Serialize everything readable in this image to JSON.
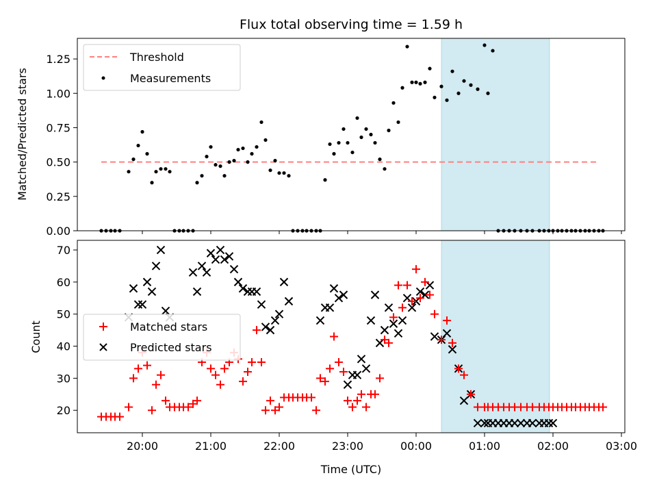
{
  "chart_data": [
    {
      "type": "scatter",
      "title": "Flux total observing time = 1.59 h",
      "xlabel": "",
      "ylabel": "Matched/Predicted stars",
      "ylim": [
        0,
        1.4
      ],
      "yticks": [
        "0.00",
        "0.25",
        "0.50",
        "0.75",
        "1.00",
        "1.25"
      ],
      "xlim_hours": [
        -4.95,
        3.05
      ],
      "highlight_span_hours": [
        0.37,
        1.95
      ],
      "legend_position": "upper-left",
      "threshold": {
        "name": "Threshold",
        "value": 0.5,
        "x_range_hours": [
          -4.6,
          2.65
        ],
        "color": "#ff7f7f"
      },
      "measurements": {
        "name": "Measurements",
        "color": "#000000",
        "x_hours": [
          -4.6,
          -4.53,
          -4.46,
          -4.4,
          -4.33,
          -4.2,
          -4.13,
          -4.06,
          -4.0,
          -3.93,
          -3.86,
          -3.8,
          -3.73,
          -3.66,
          -3.6,
          -3.53,
          -3.46,
          -3.4,
          -3.33,
          -3.26,
          -3.2,
          -3.13,
          -3.06,
          -3.0,
          -2.93,
          -2.86,
          -2.8,
          -2.73,
          -2.66,
          -2.6,
          -2.53,
          -2.46,
          -2.4,
          -2.33,
          -2.26,
          -2.2,
          -2.13,
          -2.06,
          -2.0,
          -1.93,
          -1.86,
          -1.8,
          -1.73,
          -1.66,
          -1.6,
          -1.53,
          -1.46,
          -1.4,
          -1.33,
          -1.26,
          -1.2,
          -1.13,
          -1.06,
          -1.0,
          -0.93,
          -0.86,
          -0.8,
          -0.73,
          -0.66,
          -0.6,
          -0.53,
          -0.46,
          -0.4,
          -0.33,
          -0.26,
          -0.2,
          -0.13,
          -0.06,
          0.0,
          0.06,
          0.13,
          0.2,
          0.27,
          0.37,
          0.45,
          0.53,
          0.62,
          0.7,
          0.8,
          0.9,
          1.0,
          1.05,
          1.12,
          1.2,
          1.28,
          1.36,
          1.44,
          1.53,
          1.62,
          1.7,
          1.8,
          1.87,
          1.94,
          2.0,
          2.07,
          2.13,
          2.2,
          2.27,
          2.33,
          2.4,
          2.47,
          2.53,
          2.6,
          2.67,
          2.73
        ],
        "y": [
          0,
          0,
          0,
          0,
          0,
          0.43,
          0.52,
          0.62,
          0.72,
          0.56,
          0.35,
          0.43,
          0.45,
          0.45,
          0.43,
          0,
          0,
          0,
          0,
          0,
          0.35,
          0.4,
          0.54,
          0.61,
          0.48,
          0.47,
          0.4,
          0.5,
          0.51,
          0.59,
          0.6,
          0.5,
          0.56,
          0.61,
          0.79,
          0.66,
          0.44,
          0.51,
          0.42,
          0.42,
          0.4,
          0,
          0,
          0,
          0,
          0,
          0,
          0,
          0.37,
          0.63,
          0.56,
          0.64,
          0.74,
          0.64,
          0.57,
          0.82,
          0.68,
          0.74,
          0.7,
          0.64,
          0.52,
          0.45,
          0.73,
          0.93,
          0.79,
          1.04,
          1.34,
          1.08,
          1.08,
          1.07,
          1.08,
          1.18,
          0.97,
          1.05,
          0.95,
          1.16,
          1.0,
          1.09,
          1.06,
          1.03,
          1.35,
          1.0,
          1.31,
          0,
          0,
          0,
          0,
          0,
          0,
          0,
          0,
          0,
          0,
          0,
          0,
          0,
          0,
          0,
          0,
          0,
          0,
          0,
          0,
          0,
          0
        ]
      }
    },
    {
      "type": "scatter",
      "xlabel": "Time (UTC)",
      "ylabel": "Count",
      "ylim": [
        13,
        73
      ],
      "yticks": [
        "20",
        "30",
        "40",
        "50",
        "60",
        "70"
      ],
      "xticks": [
        "20:00",
        "21:00",
        "22:00",
        "23:00",
        "00:00",
        "01:00",
        "02:00",
        "03:00"
      ],
      "xtick_hours": [
        -4,
        -3,
        -2,
        -1,
        0,
        1,
        2,
        3
      ],
      "legend_position": "center-left",
      "series": [
        {
          "name": "Matched stars",
          "marker": "+",
          "color": "#ff0000",
          "x_hours": [
            -4.6,
            -4.53,
            -4.46,
            -4.4,
            -4.33,
            -4.2,
            -4.13,
            -4.06,
            -4.0,
            -3.93,
            -3.86,
            -3.8,
            -3.73,
            -3.66,
            -3.6,
            -3.53,
            -3.46,
            -3.4,
            -3.33,
            -3.26,
            -3.2,
            -3.13,
            -3.06,
            -3.0,
            -2.93,
            -2.86,
            -2.8,
            -2.73,
            -2.66,
            -2.6,
            -2.53,
            -2.46,
            -2.4,
            -2.33,
            -2.26,
            -2.2,
            -2.13,
            -2.06,
            -2.0,
            -1.93,
            -1.86,
            -1.8,
            -1.73,
            -1.66,
            -1.6,
            -1.53,
            -1.46,
            -1.4,
            -1.33,
            -1.26,
            -1.2,
            -1.13,
            -1.06,
            -1.0,
            -0.93,
            -0.86,
            -0.8,
            -0.73,
            -0.66,
            -0.6,
            -0.53,
            -0.46,
            -0.4,
            -0.33,
            -0.26,
            -0.2,
            -0.13,
            -0.06,
            0.0,
            0.06,
            0.13,
            0.2,
            0.27,
            0.37,
            0.45,
            0.53,
            0.62,
            0.7,
            0.8,
            0.9,
            1.0,
            1.05,
            1.12,
            1.2,
            1.28,
            1.36,
            1.44,
            1.53,
            1.62,
            1.7,
            1.8,
            1.87,
            1.94,
            2.0,
            2.07,
            2.13,
            2.2,
            2.27,
            2.33,
            2.4,
            2.47,
            2.53,
            2.6,
            2.67,
            2.73
          ],
          "y": [
            18,
            18,
            18,
            18,
            18,
            21,
            30,
            33,
            38,
            34,
            20,
            28,
            31,
            23,
            21,
            21,
            21,
            21,
            21,
            22,
            23,
            35,
            38,
            33,
            31,
            28,
            33,
            35,
            38,
            36,
            29,
            32,
            35,
            45,
            35,
            20,
            23,
            20,
            21,
            24,
            24,
            24,
            24,
            24,
            24,
            24,
            20,
            30,
            29,
            33,
            43,
            35,
            32,
            23,
            21,
            23,
            25,
            21,
            25,
            25,
            30,
            42,
            41,
            49,
            59,
            52,
            59,
            54,
            64,
            55,
            60,
            56,
            50,
            42,
            48,
            41,
            33,
            31,
            25,
            21,
            21,
            21,
            21,
            21,
            21,
            21,
            21,
            21,
            21,
            21,
            21,
            21,
            21,
            21,
            21,
            21,
            21,
            21,
            21,
            21,
            21,
            21,
            21,
            21,
            21
          ]
        },
        {
          "name": "Predicted stars",
          "marker": "x",
          "color": "#000000",
          "x_hours": [
            -4.2,
            -4.13,
            -4.06,
            -4.0,
            -3.93,
            -3.86,
            -3.8,
            -3.73,
            -3.66,
            -3.6,
            -3.26,
            -3.2,
            -3.13,
            -3.06,
            -3.0,
            -2.93,
            -2.86,
            -2.8,
            -2.73,
            -2.66,
            -2.6,
            -2.53,
            -2.46,
            -2.4,
            -2.33,
            -2.26,
            -2.2,
            -2.13,
            -2.06,
            -2.0,
            -1.93,
            -1.86,
            -1.4,
            -1.33,
            -1.26,
            -1.2,
            -1.13,
            -1.06,
            -1.0,
            -0.93,
            -0.86,
            -0.8,
            -0.73,
            -0.66,
            -0.6,
            -0.53,
            -0.46,
            -0.4,
            -0.33,
            -0.26,
            -0.2,
            -0.13,
            -0.06,
            0.0,
            0.06,
            0.13,
            0.2,
            0.27,
            0.37,
            0.45,
            0.53,
            0.62,
            0.7,
            0.8,
            0.9,
            1.0,
            1.05,
            1.12,
            1.2,
            1.28,
            1.36,
            1.44,
            1.53,
            1.62,
            1.7,
            1.8,
            1.87,
            1.94,
            2.0
          ],
          "y": [
            49,
            58,
            53,
            53,
            60,
            57,
            65,
            70,
            51,
            49,
            63,
            57,
            65,
            63,
            69,
            67,
            70,
            67,
            68,
            64,
            60,
            58,
            57,
            57,
            57,
            53,
            46,
            45,
            48,
            50,
            60,
            54,
            48,
            52,
            52,
            58,
            55,
            56,
            28,
            31,
            31,
            36,
            33,
            48,
            56,
            41,
            45,
            52,
            47,
            44,
            48,
            55,
            52,
            54,
            57,
            56,
            59,
            43,
            42,
            44,
            39,
            33,
            23,
            25,
            16,
            16,
            16,
            16,
            16,
            16,
            16,
            16,
            16,
            16,
            16,
            16,
            16,
            16,
            16
          ]
        }
      ]
    }
  ]
}
